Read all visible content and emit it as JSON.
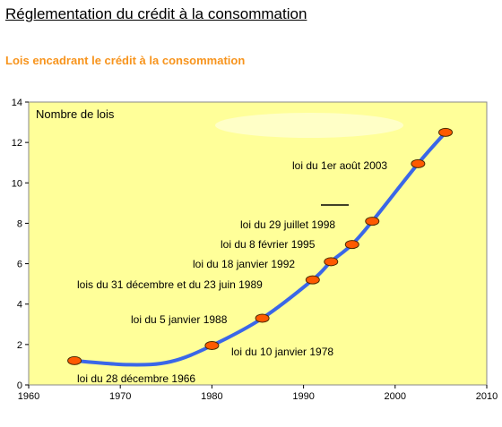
{
  "page": {
    "title": "Réglementation du crédit à la consommation",
    "subtitle": "Lois encadrant le crédit à la consommation"
  },
  "colors": {
    "subtitle": "#F7941D",
    "plot_background": "#FFFF99",
    "line": "#3A67E8",
    "marker_fill": "#FF5A00",
    "marker_stroke": "#4A2A00"
  },
  "chart_data": {
    "type": "line",
    "title": "",
    "ylabel": "Nombre de lois",
    "xlabel": "",
    "xlim": [
      1960,
      2010
    ],
    "ylim": [
      0,
      14
    ],
    "x_ticks": [
      1960,
      1970,
      1980,
      1990,
      2000,
      2010
    ],
    "y_ticks": [
      0,
      2,
      4,
      6,
      8,
      10,
      12,
      14
    ],
    "grid": false,
    "series": [
      {
        "name": "",
        "points": [
          {
            "x": 1965,
            "y": 1.2,
            "label": "loi du 28 décembre 1966"
          },
          {
            "x": 1980,
            "y": 1.95,
            "label": "loi du 10 janvier 1978"
          },
          {
            "x": 1985.5,
            "y": 3.3,
            "label": "loi du 5 janvier 1988"
          },
          {
            "x": 1991,
            "y": 5.2,
            "label": "lois du 31 décembre et du 23 juin 1989"
          },
          {
            "x": 1993,
            "y": 6.1,
            "label": "loi du 18 janvier 1992"
          },
          {
            "x": 1995.3,
            "y": 6.95,
            "label": "loi du 8 février 1995"
          },
          {
            "x": 1997.5,
            "y": 8.1,
            "label": "loi du 29 juillet 1998"
          },
          {
            "x": 2002.5,
            "y": 10.95,
            "label": "loi du 1er août 2003"
          },
          {
            "x": 2005.5,
            "y": 12.5,
            "label": ""
          }
        ]
      }
    ]
  }
}
